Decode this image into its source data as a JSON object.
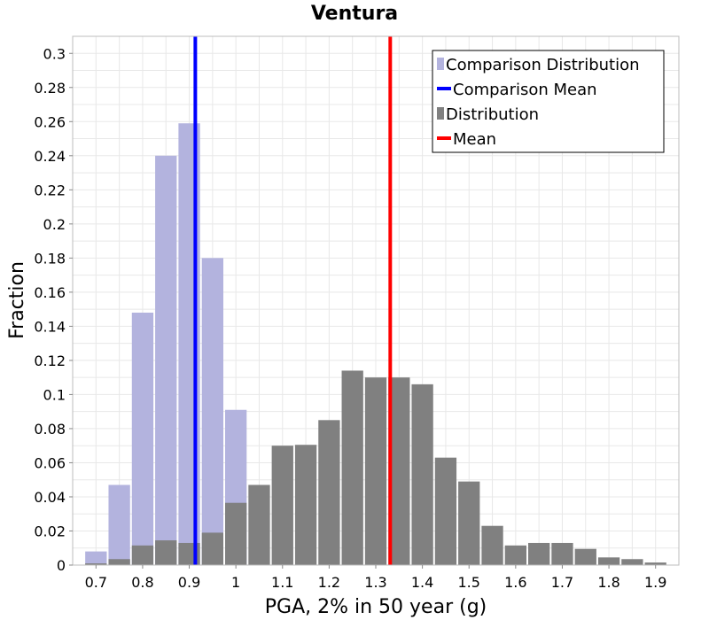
{
  "chart_data": {
    "type": "bar",
    "title": "Ventura",
    "xlabel": "PGA, 2% in 50 year (g)",
    "ylabel": "Fraction",
    "xlim": [
      0.65,
      1.95
    ],
    "ylim": [
      0,
      0.31
    ],
    "bin_width": 0.05,
    "xticks": [
      "0.7",
      "0.8",
      "0.9",
      "1",
      "1.1",
      "1.2",
      "1.3",
      "1.4",
      "1.5",
      "1.6",
      "1.7",
      "1.8",
      "1.9"
    ],
    "yticks": [
      "0",
      "0.02",
      "0.04",
      "0.06",
      "0.08",
      "0.1",
      "0.12",
      "0.14",
      "0.16",
      "0.18",
      "0.2",
      "0.22",
      "0.24",
      "0.26",
      "0.28",
      "0.3"
    ],
    "grid": true,
    "legend_position": "top-right",
    "series": [
      {
        "name": "Comparison Distribution",
        "color": "#b3b3de",
        "x": [
          0.7,
          0.75,
          0.8,
          0.85,
          0.9,
          0.95,
          1.0
        ],
        "values": [
          0.008,
          0.047,
          0.148,
          0.24,
          0.259,
          0.18,
          0.091
        ]
      },
      {
        "name": "Distribution",
        "color": "#808080",
        "x": [
          0.7,
          0.75,
          0.8,
          0.85,
          0.9,
          0.95,
          1.0,
          1.05,
          1.1,
          1.15,
          1.2,
          1.25,
          1.3,
          1.35,
          1.4,
          1.45,
          1.5,
          1.55,
          1.6,
          1.65,
          1.7,
          1.75,
          1.8,
          1.85,
          1.9
        ],
        "values": [
          0.001,
          0.0035,
          0.0115,
          0.0145,
          0.013,
          0.019,
          0.0365,
          0.047,
          0.07,
          0.0705,
          0.085,
          0.114,
          0.11,
          0.11,
          0.106,
          0.063,
          0.049,
          0.023,
          0.0115,
          0.013,
          0.013,
          0.0095,
          0.0045,
          0.0035,
          0.0015
        ]
      }
    ],
    "lines": [
      {
        "name": "Comparison Mean",
        "x": 0.913,
        "color": "#0000ff"
      },
      {
        "name": "Mean",
        "x": 1.331,
        "color": "#ff0000"
      }
    ],
    "legend": [
      {
        "label": "Comparison Distribution",
        "kind": "box",
        "color": "#b3b3de"
      },
      {
        "label": "Comparison Mean",
        "kind": "line",
        "color": "#0000ff"
      },
      {
        "label": "Distribution",
        "kind": "box",
        "color": "#808080"
      },
      {
        "label": "Mean",
        "kind": "line",
        "color": "#ff0000"
      }
    ]
  }
}
